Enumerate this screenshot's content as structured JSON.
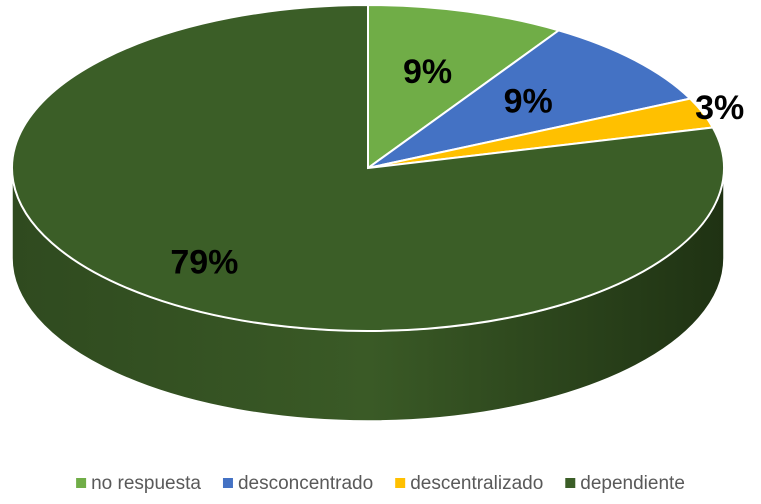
{
  "chart_data": {
    "type": "pie",
    "categories": [
      "no respuesta",
      "desconcentrado",
      "descentralizado",
      "dependiente"
    ],
    "values": [
      9,
      9,
      3,
      79
    ],
    "value_labels": [
      "9%",
      "9%",
      "3%",
      "79%"
    ],
    "colors": [
      "#70ad47",
      "#4472c4",
      "#ffc000",
      "#3b5e27"
    ],
    "legend": "bottom"
  }
}
